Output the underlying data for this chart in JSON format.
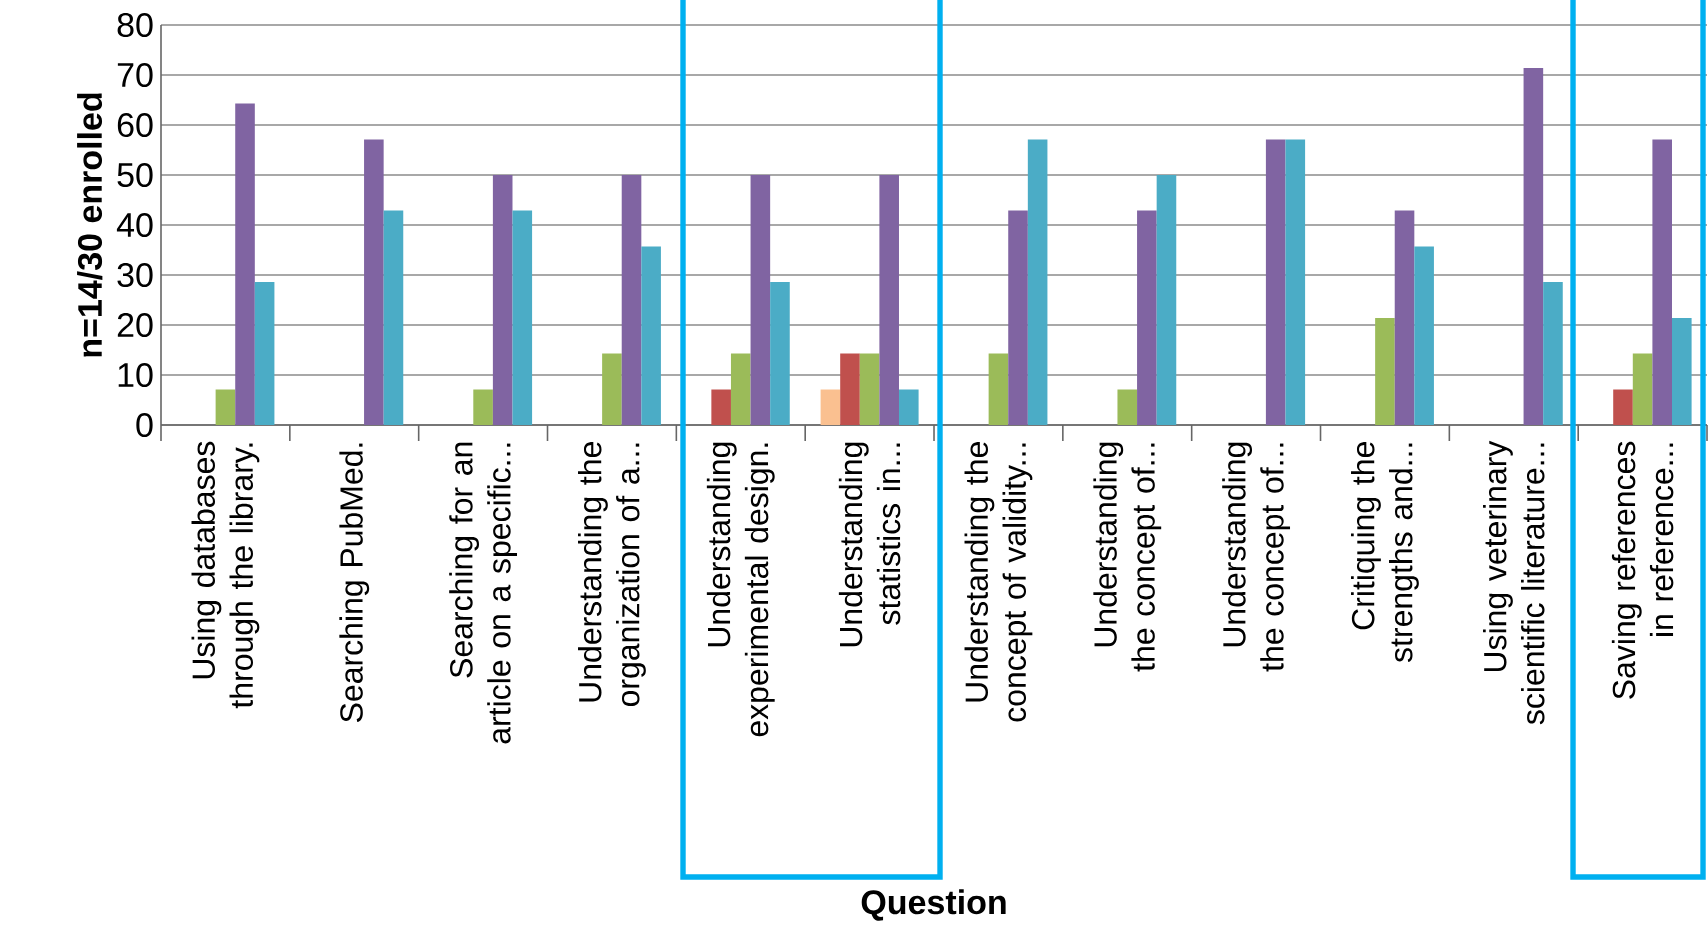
{
  "chart_data": {
    "type": "bar",
    "xlabel": "Question",
    "ylabel": "n=14/30 enrolled",
    "categories": [
      "Using databases through the library.",
      "Searching PubMed.",
      "Searching for an article on a specific...",
      "Understanding the organization of a...",
      "Understanding experimental design.",
      "Understanding statistics in...",
      "Understanding the concept of validity...",
      "Understanding the concept of...",
      "Understanding the concept of...",
      "Critiquing the strengths and...",
      "Using veterinary scientific literature...",
      "Saving references in reference..."
    ],
    "series": [
      {
        "color": "#fac090",
        "values": [
          0,
          0,
          0,
          0,
          0,
          7.1,
          0,
          0,
          0,
          0,
          0,
          0
        ]
      },
      {
        "color": "#c0504d",
        "values": [
          0,
          0,
          0,
          0,
          7.1,
          14.3,
          0,
          0,
          0,
          0,
          0,
          7.1
        ]
      },
      {
        "color": "#9bbb59",
        "values": [
          7.1,
          0,
          7.1,
          14.3,
          14.3,
          14.3,
          14.3,
          7.1,
          0,
          21.4,
          0,
          14.3
        ]
      },
      {
        "color": "#8064a2",
        "values": [
          64.3,
          57.1,
          50,
          50,
          50,
          50,
          42.9,
          42.9,
          57.1,
          42.9,
          71.4,
          57.1
        ]
      },
      {
        "color": "#4bacc6",
        "values": [
          28.6,
          42.9,
          42.9,
          35.7,
          28.6,
          7.1,
          57.1,
          50,
          57.1,
          35.7,
          28.6,
          21.4
        ]
      }
    ],
    "ylim": [
      0,
      80
    ],
    "yticks": [
      0,
      10,
      20,
      30,
      40,
      50,
      60,
      70,
      80
    ],
    "grid": "y"
  }
}
